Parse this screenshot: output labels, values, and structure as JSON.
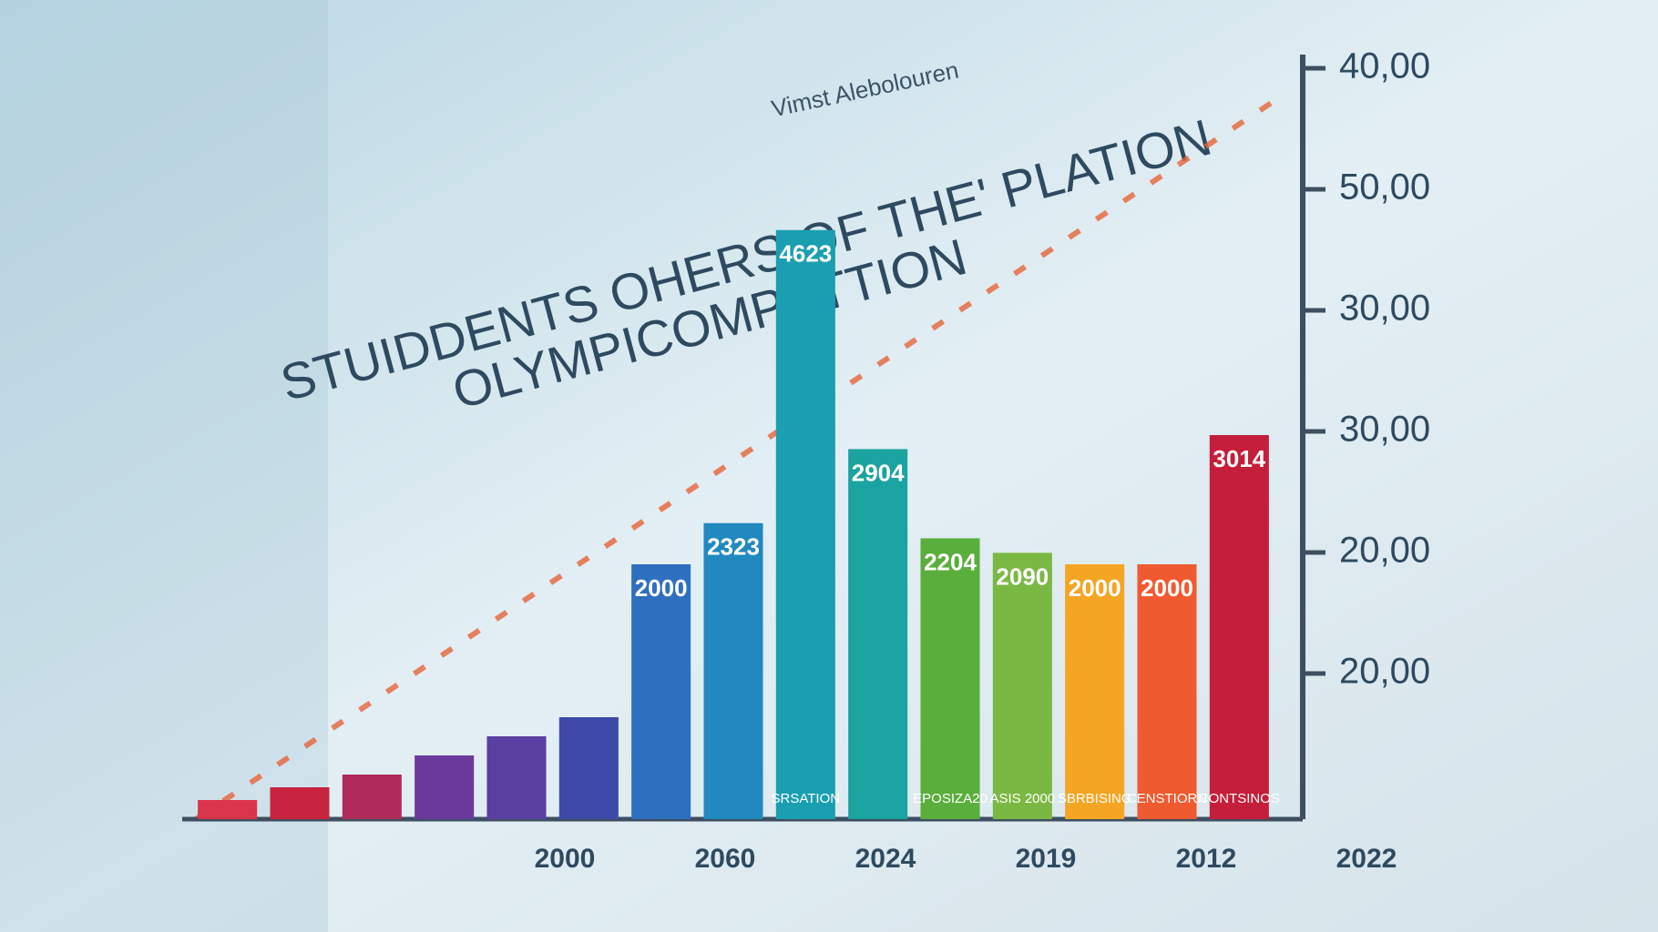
{
  "chart_data": {
    "type": "bar",
    "title": "STUIDDENTS OHERS OF THE' PLATION",
    "subtitle": "OLYMPICOMPETTION",
    "annotation": "Vimst Alebolouren",
    "categories": [
      null,
      null,
      null,
      null,
      null,
      null,
      null,
      null,
      null,
      null,
      null,
      null,
      null,
      null,
      null
    ],
    "values": [
      150,
      250,
      350,
      500,
      650,
      800,
      2000,
      2323,
      4623,
      2904,
      2204,
      2090,
      2000,
      2000,
      3014
    ],
    "show_value": [
      false,
      false,
      false,
      false,
      false,
      false,
      true,
      true,
      true,
      true,
      true,
      true,
      true,
      true,
      true
    ],
    "bar_captions": [
      null,
      null,
      null,
      null,
      null,
      null,
      null,
      null,
      "SRSATION",
      null,
      "EPOSIZA20",
      "ASIS 2000",
      "SBRBISING",
      "CENSTIORN",
      "CONTSINOS"
    ],
    "colors": [
      "#d9344a",
      "#c8243f",
      "#b02a5a",
      "#6a3a9a",
      "#5a3fa0",
      "#3d4aa8",
      "#2f6fbf",
      "#2288c0",
      "#1a9fb0",
      "#1aa3a0",
      "#5aae3c",
      "#7ab843",
      "#f5a524",
      "#f05a30",
      "#c41e3a"
    ],
    "x_labels": [
      "2000",
      "2060",
      "2024",
      "2019",
      "2012",
      "2022"
    ],
    "side_labels": [
      "40,00",
      "50,00",
      "30,00",
      "30,00",
      "20,00",
      "20,00"
    ],
    "ylim": [
      0,
      5000
    ]
  }
}
